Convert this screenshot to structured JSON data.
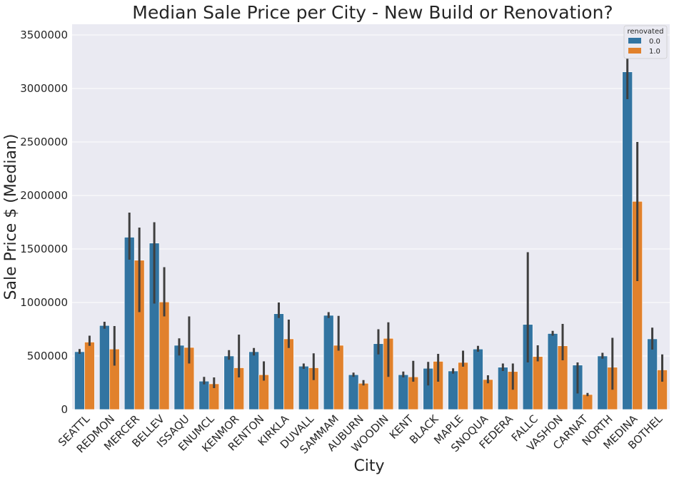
{
  "chart_data": {
    "type": "bar",
    "title": "Median Sale Price per City - New Build or Renovation?",
    "xlabel": "City",
    "ylabel": "Sale Price $ (Median)",
    "ylim": [
      0,
      3600000
    ],
    "yticks": [
      0,
      500000,
      1000000,
      1500000,
      2000000,
      2500000,
      3000000,
      3500000
    ],
    "grid": true,
    "legend_title": "renovated",
    "legend_position": "top-right",
    "categories": [
      "SEATTL",
      "REDMON",
      "MERCER",
      "BELLEV",
      "ISSAQU",
      "ENUMCL",
      "KENMOR",
      "RENTON",
      "KIRKLA",
      "DUVALL",
      "SAMMAM",
      "AUBURN",
      "WOODIN",
      "KENT",
      "BLACK",
      "MAPLE",
      "SNOQUA",
      "FEDERA",
      "FALLC",
      "VASHON",
      "CARNAT",
      "NORTH",
      "MEDINA",
      "BOTHEL"
    ],
    "series": [
      {
        "name": "0.0",
        "color": "#3274a1",
        "values": [
          540000,
          785000,
          1610000,
          1555000,
          600000,
          265000,
          500000,
          540000,
          895000,
          405000,
          880000,
          325000,
          615000,
          325000,
          385000,
          360000,
          565000,
          395000,
          795000,
          710000,
          415000,
          500000,
          3155000,
          660000
        ],
        "ci": [
          [
            520000,
            565000
          ],
          [
            755000,
            820000
          ],
          [
            1400000,
            1840000
          ],
          [
            990000,
            1750000
          ],
          [
            505000,
            665000
          ],
          [
            235000,
            305000
          ],
          [
            465000,
            555000
          ],
          [
            505000,
            575000
          ],
          [
            855000,
            1000000
          ],
          [
            380000,
            430000
          ],
          [
            855000,
            910000
          ],
          [
            305000,
            345000
          ],
          [
            515000,
            750000
          ],
          [
            300000,
            355000
          ],
          [
            225000,
            445000
          ],
          [
            335000,
            385000
          ],
          [
            540000,
            595000
          ],
          [
            360000,
            430000
          ],
          [
            440000,
            1470000
          ],
          [
            690000,
            735000
          ],
          [
            150000,
            440000
          ],
          [
            475000,
            530000
          ],
          [
            2900000,
            3430000
          ],
          [
            560000,
            765000
          ]
        ]
      },
      {
        "name": "1.0",
        "color": "#e1812c",
        "values": [
          630000,
          565000,
          1395000,
          1005000,
          580000,
          240000,
          390000,
          325000,
          660000,
          390000,
          600000,
          245000,
          665000,
          305000,
          450000,
          440000,
          280000,
          355000,
          495000,
          595000,
          140000,
          395000,
          1945000,
          370000
        ],
        "ci": [
          [
            595000,
            690000
          ],
          [
            410000,
            780000
          ],
          [
            910000,
            1700000
          ],
          [
            870000,
            1330000
          ],
          [
            430000,
            870000
          ],
          [
            200000,
            300000
          ],
          [
            300000,
            700000
          ],
          [
            270000,
            450000
          ],
          [
            575000,
            840000
          ],
          [
            275000,
            525000
          ],
          [
            550000,
            875000
          ],
          [
            225000,
            275000
          ],
          [
            305000,
            815000
          ],
          [
            260000,
            455000
          ],
          [
            260000,
            520000
          ],
          [
            400000,
            550000
          ],
          [
            245000,
            320000
          ],
          [
            185000,
            430000
          ],
          [
            450000,
            600000
          ],
          [
            460000,
            800000
          ],
          [
            125000,
            155000
          ],
          [
            185000,
            670000
          ],
          [
            1200000,
            2500000
          ],
          [
            260000,
            515000
          ]
        ]
      }
    ]
  }
}
